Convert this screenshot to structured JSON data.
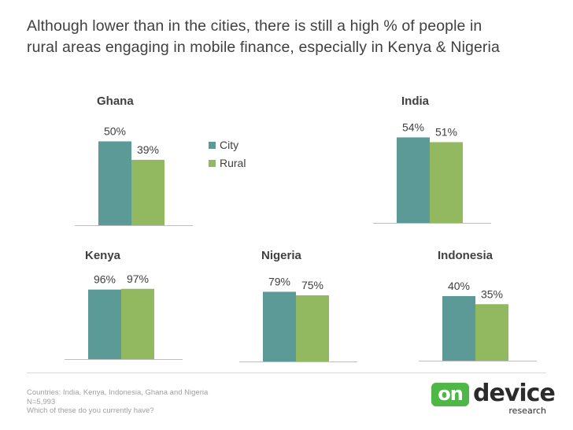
{
  "headline": {
    "line1": "Although lower than in the cities, there is still a high % of people in",
    "line2": "rural areas engaging in mobile finance, especially in Kenya & Nigeria"
  },
  "chart_data": {
    "type": "bar",
    "series_names": [
      "City",
      "Rural"
    ],
    "colors": {
      "City": "#5b9a97",
      "Rural": "#93b960"
    },
    "legend_position": "right of Ghana chart",
    "grid": false,
    "ylim": [
      0,
      100
    ],
    "charts": [
      {
        "title": "Ghana",
        "values": [
          50,
          39
        ],
        "labels": [
          "50%",
          "39%"
        ]
      },
      {
        "title": "India",
        "values": [
          54,
          51
        ],
        "labels": [
          "54%",
          "51%"
        ]
      },
      {
        "title": "Kenya",
        "values": [
          96,
          97
        ],
        "labels": [
          "96%",
          "97%"
        ]
      },
      {
        "title": "Nigeria",
        "values": [
          79,
          75
        ],
        "labels": [
          "79%",
          "75%"
        ]
      },
      {
        "title": "Indonesia",
        "values": [
          40,
          35
        ],
        "labels": [
          "40%",
          "35%"
        ]
      }
    ]
  },
  "footnotes": {
    "line1": "Countries: India, Kenya, Indonesia, Ghana and Nigeria",
    "line2": "N=5,993",
    "line3": "Which of these do you currently have?"
  },
  "logo": {
    "badge": "on",
    "word": "device",
    "sub": "research"
  }
}
